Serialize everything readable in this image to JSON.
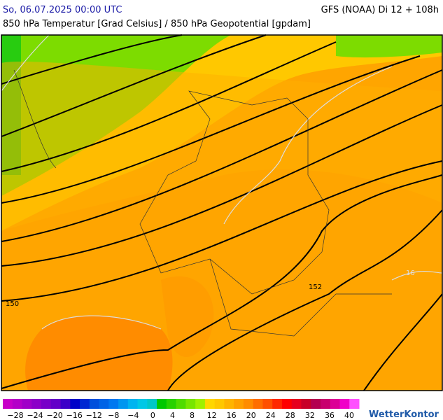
{
  "header": {
    "left": "So, 06.07.2025 00:00 UTC",
    "right": "GFS (NOAA) Di 12 + 108h",
    "subtitle": "850 hPa Temperatur [Grad Celsius] / 850 hPa Geopotential [gpdam]"
  },
  "map": {
    "contour_labels": [
      "150",
      "152"
    ],
    "isotherm_labels": [
      "16"
    ]
  },
  "colorbar": {
    "labels": [
      "−28",
      "−24",
      "−20",
      "−16",
      "−12",
      "−8",
      "−4",
      "0",
      "4",
      "8",
      "12",
      "16",
      "20",
      "24",
      "28",
      "32",
      "36",
      "40"
    ],
    "colors": [
      "#c800c8",
      "#b400c8",
      "#a000c8",
      "#8c00c8",
      "#7800c8",
      "#6400c8",
      "#3c00c8",
      "#0000c8",
      "#0028d2",
      "#0050dc",
      "#0064e6",
      "#0078f0",
      "#0096f0",
      "#00b4f0",
      "#00c8e6",
      "#00c8c8",
      "#00c800",
      "#28d200",
      "#50dc00",
      "#78e600",
      "#a0f000",
      "#ffd700",
      "#ffc800",
      "#ffb400",
      "#ffa000",
      "#ff8c00",
      "#ff6e00",
      "#ff5000",
      "#ff2800",
      "#ff0000",
      "#e6001e",
      "#c80028",
      "#b40050",
      "#c8006e",
      "#dc0096",
      "#f000c8",
      "#ff50ff"
    ]
  },
  "brand": "WetterKontor"
}
